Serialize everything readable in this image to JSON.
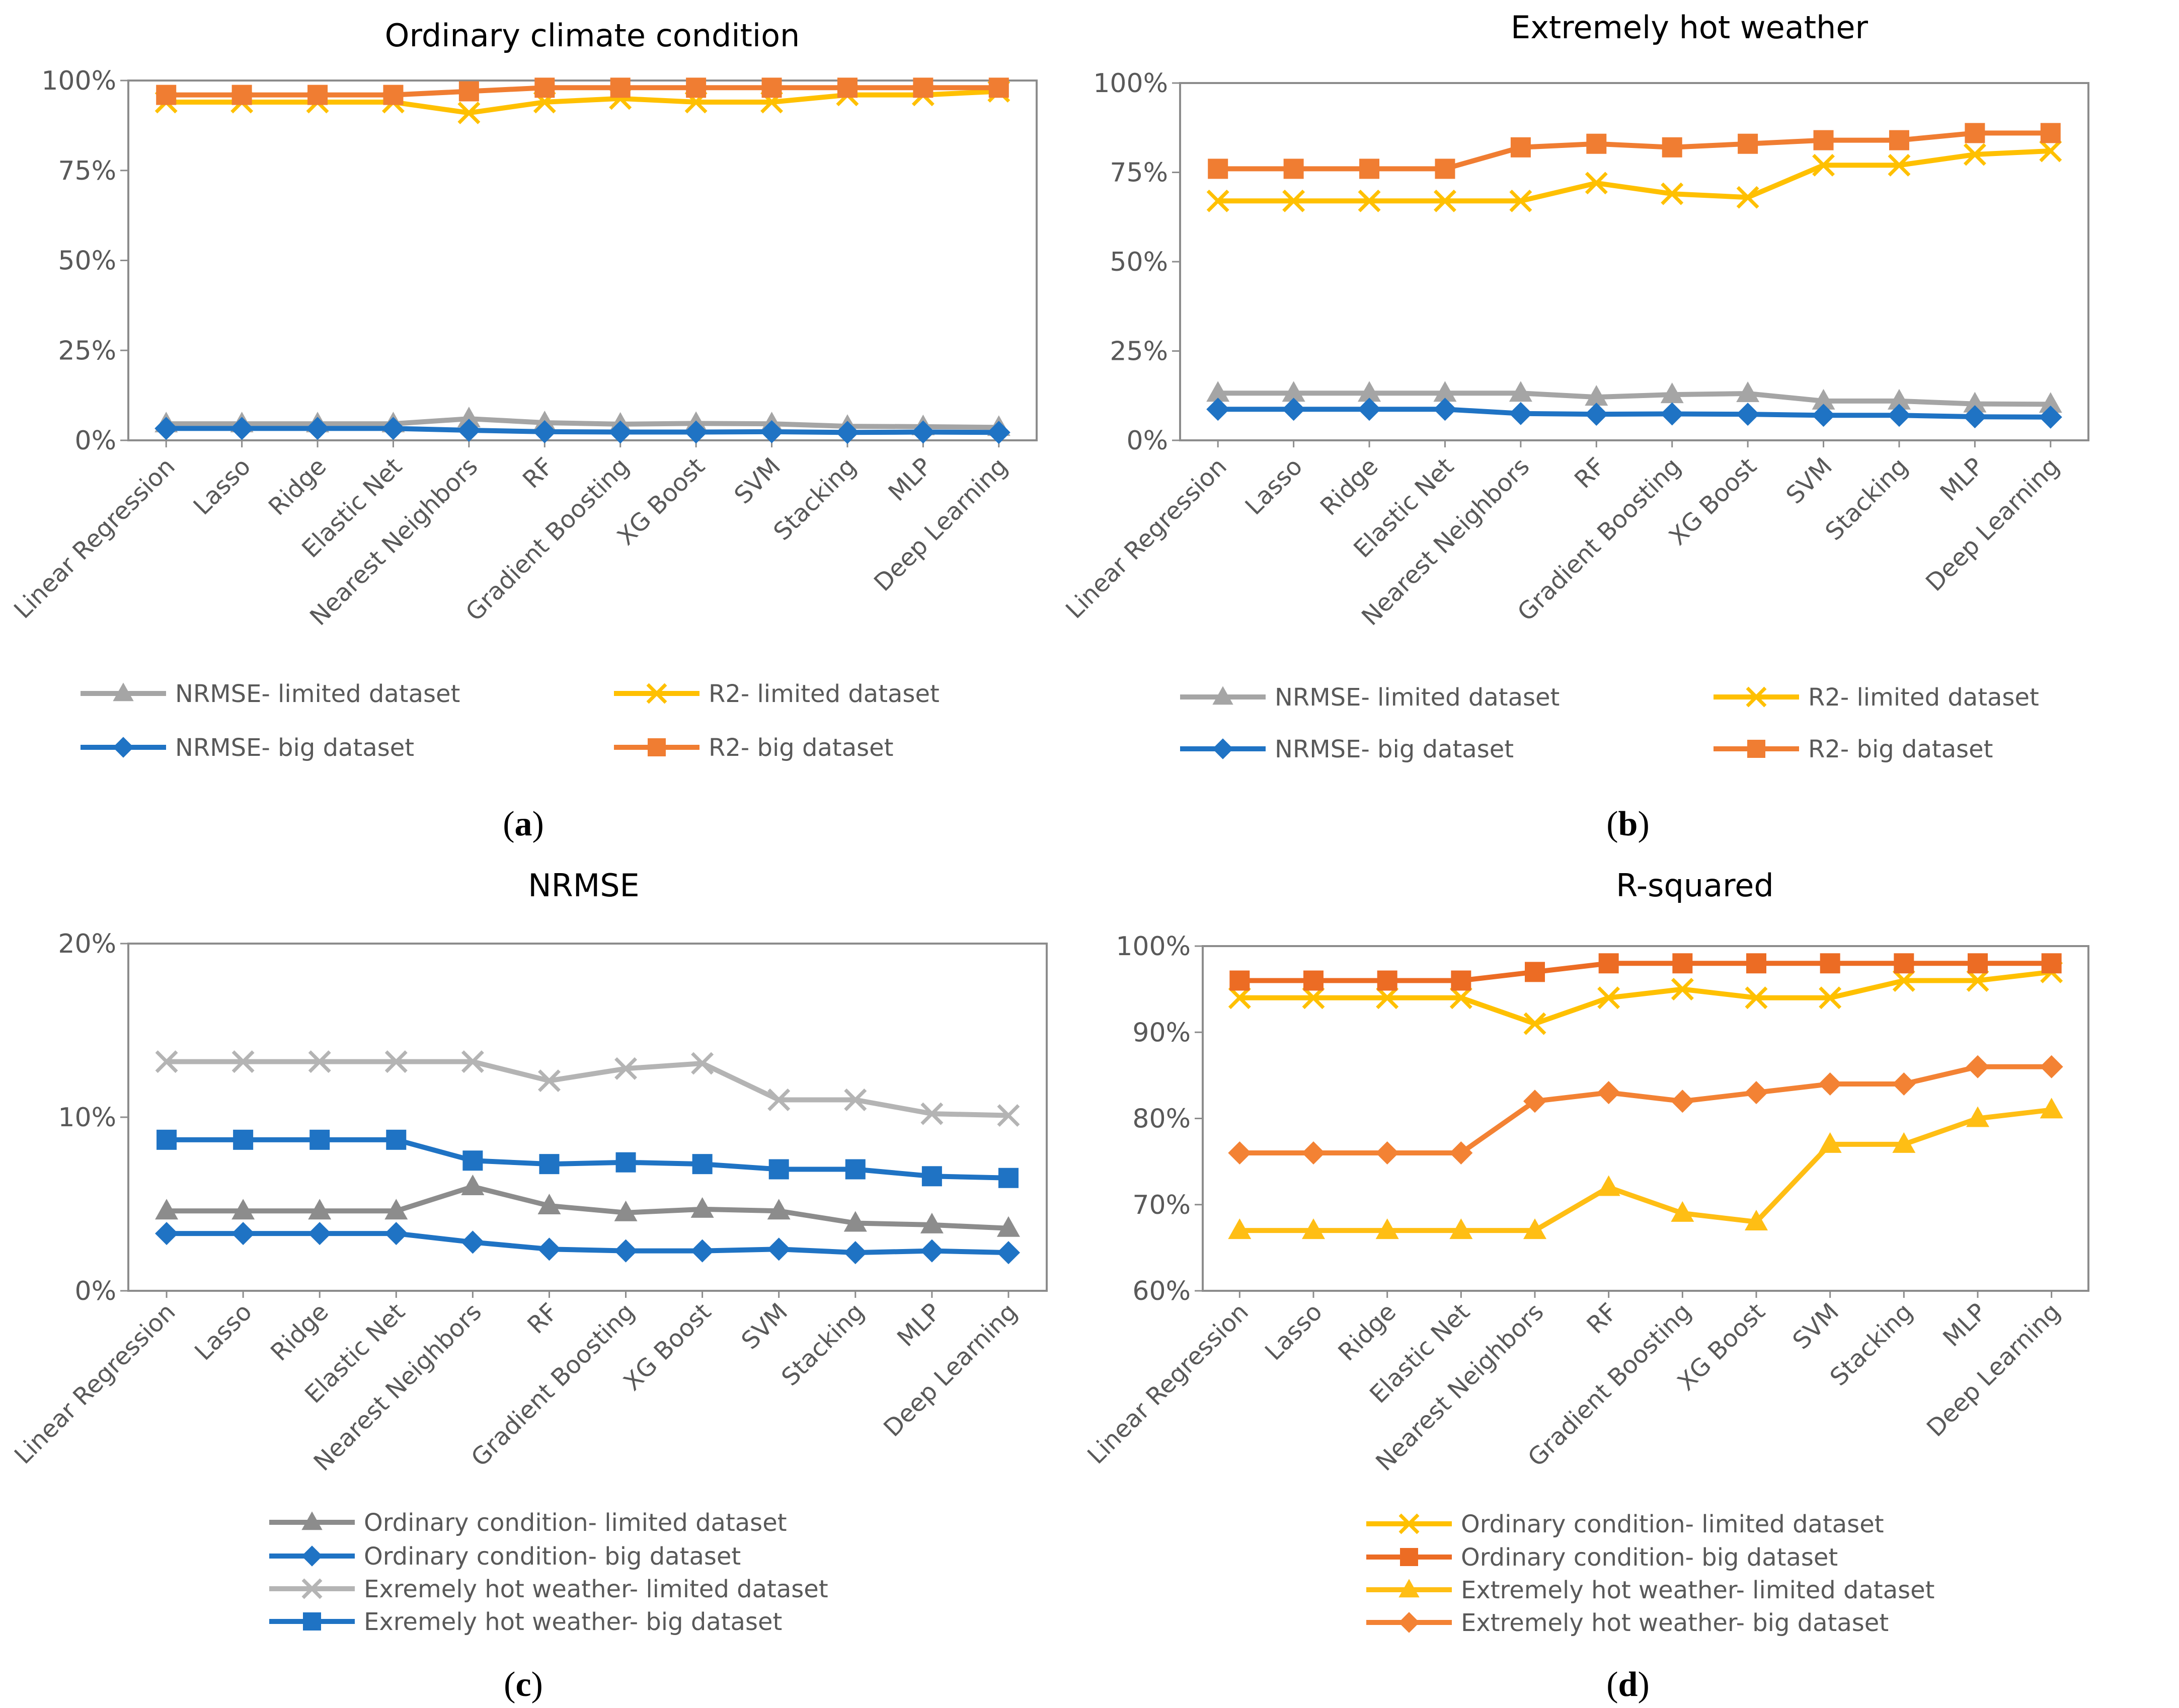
{
  "chart_data": [
    {
      "id": "a",
      "type": "line",
      "title": "Ordinary climate condition",
      "caption": "a",
      "xlabel": "",
      "ylabel": "",
      "ylim": [
        0,
        100
      ],
      "yticks": [
        "0%",
        "25%",
        "50%",
        "75%",
        "100%"
      ],
      "categories": [
        "Linear Regression",
        "Lasso",
        "Ridge",
        "Elastic Net",
        "Nearest Neighbors",
        "RF",
        "Gradient Boosting",
        "XG Boost",
        "SVM",
        "Stacking",
        "MLP",
        "Deep Learning"
      ],
      "legend_position": "bottom",
      "series": [
        {
          "name": "NRMSE- limited dataset",
          "color": "#a5a5a5",
          "marker": "triangle",
          "values": [
            4.6,
            4.6,
            4.6,
            4.6,
            6.0,
            4.9,
            4.5,
            4.7,
            4.6,
            3.9,
            3.8,
            3.6
          ]
        },
        {
          "name": "R2- limited dataset",
          "color": "#ffc000",
          "marker": "x",
          "values": [
            94,
            94,
            94,
            94,
            91,
            94,
            95,
            94,
            94,
            96,
            96,
            97
          ]
        },
        {
          "name": "NRMSE- big dataset",
          "color": "#1f73c4",
          "marker": "diamond",
          "values": [
            3.3,
            3.3,
            3.3,
            3.3,
            2.8,
            2.4,
            2.3,
            2.3,
            2.4,
            2.2,
            2.3,
            2.2
          ]
        },
        {
          "name": "R2- big dataset",
          "color": "#f07d32",
          "marker": "square",
          "values": [
            96,
            96,
            96,
            96,
            97,
            98,
            98,
            98,
            98,
            98,
            98,
            98
          ]
        }
      ]
    },
    {
      "id": "b",
      "type": "line",
      "title": "Extremely hot weather",
      "caption": "b",
      "xlabel": "",
      "ylabel": "",
      "ylim": [
        0,
        100
      ],
      "yticks": [
        "0%",
        "25%",
        "50%",
        "75%",
        "100%"
      ],
      "categories": [
        "Linear Regression",
        "Lasso",
        "Ridge",
        "Elastic Net",
        "Nearest Neighbors",
        "RF",
        "Gradient Boosting",
        "XG Boost",
        "SVM",
        "Stacking",
        "MLP",
        "Deep Learning"
      ],
      "legend_position": "bottom",
      "series": [
        {
          "name": "NRMSE- limited dataset",
          "color": "#a5a5a5",
          "marker": "triangle",
          "values": [
            13.2,
            13.2,
            13.2,
            13.2,
            13.2,
            12.1,
            12.8,
            13.1,
            11.0,
            11.0,
            10.2,
            10.1
          ]
        },
        {
          "name": "R2- limited dataset",
          "color": "#ffc000",
          "marker": "x",
          "values": [
            67,
            67,
            67,
            67,
            67,
            72,
            69,
            68,
            77,
            77,
            80,
            81
          ]
        },
        {
          "name": "NRMSE- big dataset",
          "color": "#1f73c4",
          "marker": "diamond",
          "values": [
            8.7,
            8.7,
            8.7,
            8.7,
            7.5,
            7.3,
            7.4,
            7.3,
            7.0,
            7.0,
            6.6,
            6.5
          ]
        },
        {
          "name": "R2- big dataset",
          "color": "#f07d32",
          "marker": "square",
          "values": [
            76,
            76,
            76,
            76,
            82,
            83,
            82,
            83,
            84,
            84,
            86,
            86
          ]
        }
      ]
    },
    {
      "id": "c",
      "type": "line",
      "title": "NRMSE",
      "caption": "c",
      "xlabel": "",
      "ylabel": "",
      "ylim": [
        0,
        20
      ],
      "yticks": [
        "0%",
        "10%",
        "20%"
      ],
      "categories": [
        "Linear Regression",
        "Lasso",
        "Ridge",
        "Elastic Net",
        "Nearest Neighbors",
        "RF",
        "Gradient Boosting",
        "XG Boost",
        "SVM",
        "Stacking",
        "MLP",
        "Deep Learning"
      ],
      "legend_position": "bottom",
      "series": [
        {
          "name": "Ordinary condition- limited dataset",
          "color": "#8c8c8c",
          "marker": "triangle",
          "values": [
            4.6,
            4.6,
            4.6,
            4.6,
            6.0,
            4.9,
            4.5,
            4.7,
            4.6,
            3.9,
            3.8,
            3.6
          ]
        },
        {
          "name": "Ordinary condition- big dataset",
          "color": "#1f73c4",
          "marker": "diamond",
          "values": [
            3.3,
            3.3,
            3.3,
            3.3,
            2.8,
            2.4,
            2.3,
            2.3,
            2.4,
            2.2,
            2.3,
            2.2
          ]
        },
        {
          "name": "Exremely hot weather- limited dataset",
          "color": "#b4b4b4",
          "marker": "x",
          "values": [
            13.2,
            13.2,
            13.2,
            13.2,
            13.2,
            12.1,
            12.8,
            13.1,
            11.0,
            11.0,
            10.2,
            10.1
          ]
        },
        {
          "name": "Exremely hot weather- big dataset",
          "color": "#1f73c4",
          "marker": "square",
          "values": [
            8.7,
            8.7,
            8.7,
            8.7,
            7.5,
            7.3,
            7.4,
            7.3,
            7.0,
            7.0,
            6.6,
            6.5
          ]
        }
      ]
    },
    {
      "id": "d",
      "type": "line",
      "title": "R-squared",
      "caption": "d",
      "xlabel": "",
      "ylabel": "",
      "ylim": [
        60,
        100
      ],
      "yticks": [
        "60%",
        "70%",
        "80%",
        "90%",
        "100%"
      ],
      "categories": [
        "Linear Regression",
        "Lasso",
        "Ridge",
        "Elastic Net",
        "Nearest Neighbors",
        "RF",
        "Gradient Boosting",
        "XG Boost",
        "SVM",
        "Stacking",
        "MLP",
        "Deep Learning"
      ],
      "legend_position": "bottom",
      "series": [
        {
          "name": "Ordinary condition- limited dataset",
          "color": "#ffc000",
          "marker": "x",
          "values": [
            94,
            94,
            94,
            94,
            91,
            94,
            95,
            94,
            94,
            96,
            96,
            97
          ]
        },
        {
          "name": "Ordinary condition- big dataset",
          "color": "#ec6c24",
          "marker": "square",
          "values": [
            96,
            96,
            96,
            96,
            97,
            98,
            98,
            98,
            98,
            98,
            98,
            98
          ]
        },
        {
          "name": "Extremely hot weather- limited dataset",
          "color": "#ffbe14",
          "marker": "triangle",
          "values": [
            67,
            67,
            67,
            67,
            67,
            72,
            69,
            68,
            77,
            77,
            80,
            81
          ]
        },
        {
          "name": "Extremely hot weather- big dataset",
          "color": "#f38234",
          "marker": "diamond",
          "values": [
            76,
            76,
            76,
            76,
            82,
            83,
            82,
            83,
            84,
            84,
            86,
            86
          ]
        }
      ]
    }
  ]
}
